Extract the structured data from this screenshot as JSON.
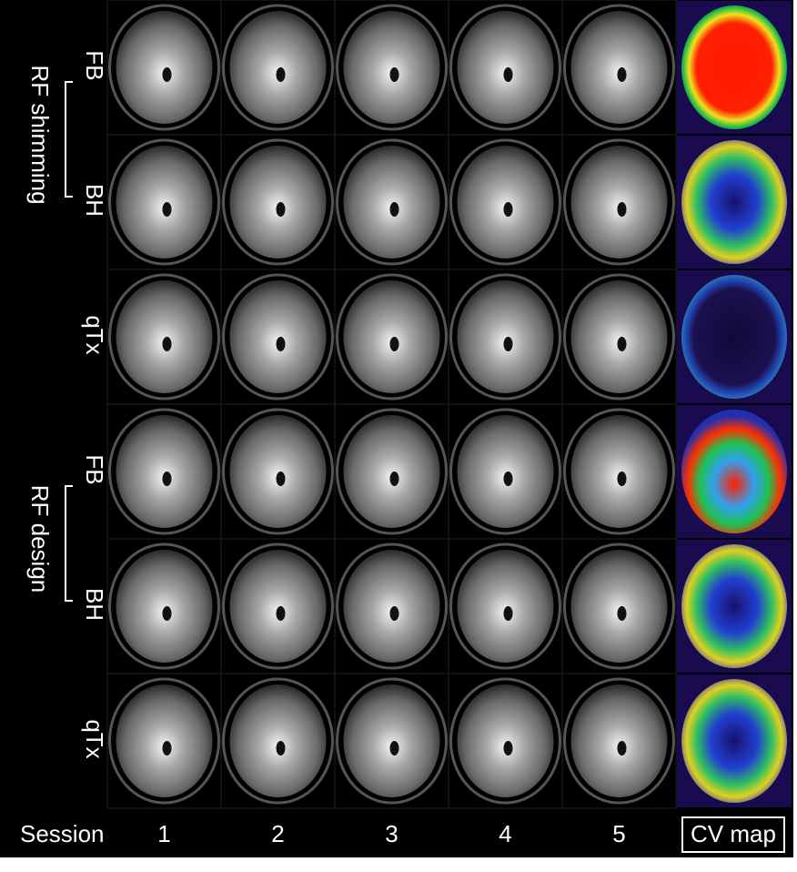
{
  "groups": [
    {
      "label": "RF shimming",
      "rows": [
        "FB",
        "BH",
        "qTx"
      ]
    },
    {
      "label": "RF design",
      "rows": [
        "FB",
        "BH",
        "qTx"
      ]
    }
  ],
  "footer": {
    "session_label": "Session",
    "sessions": [
      "1",
      "2",
      "3",
      "4",
      "5"
    ],
    "cv_label": "CV map"
  }
}
